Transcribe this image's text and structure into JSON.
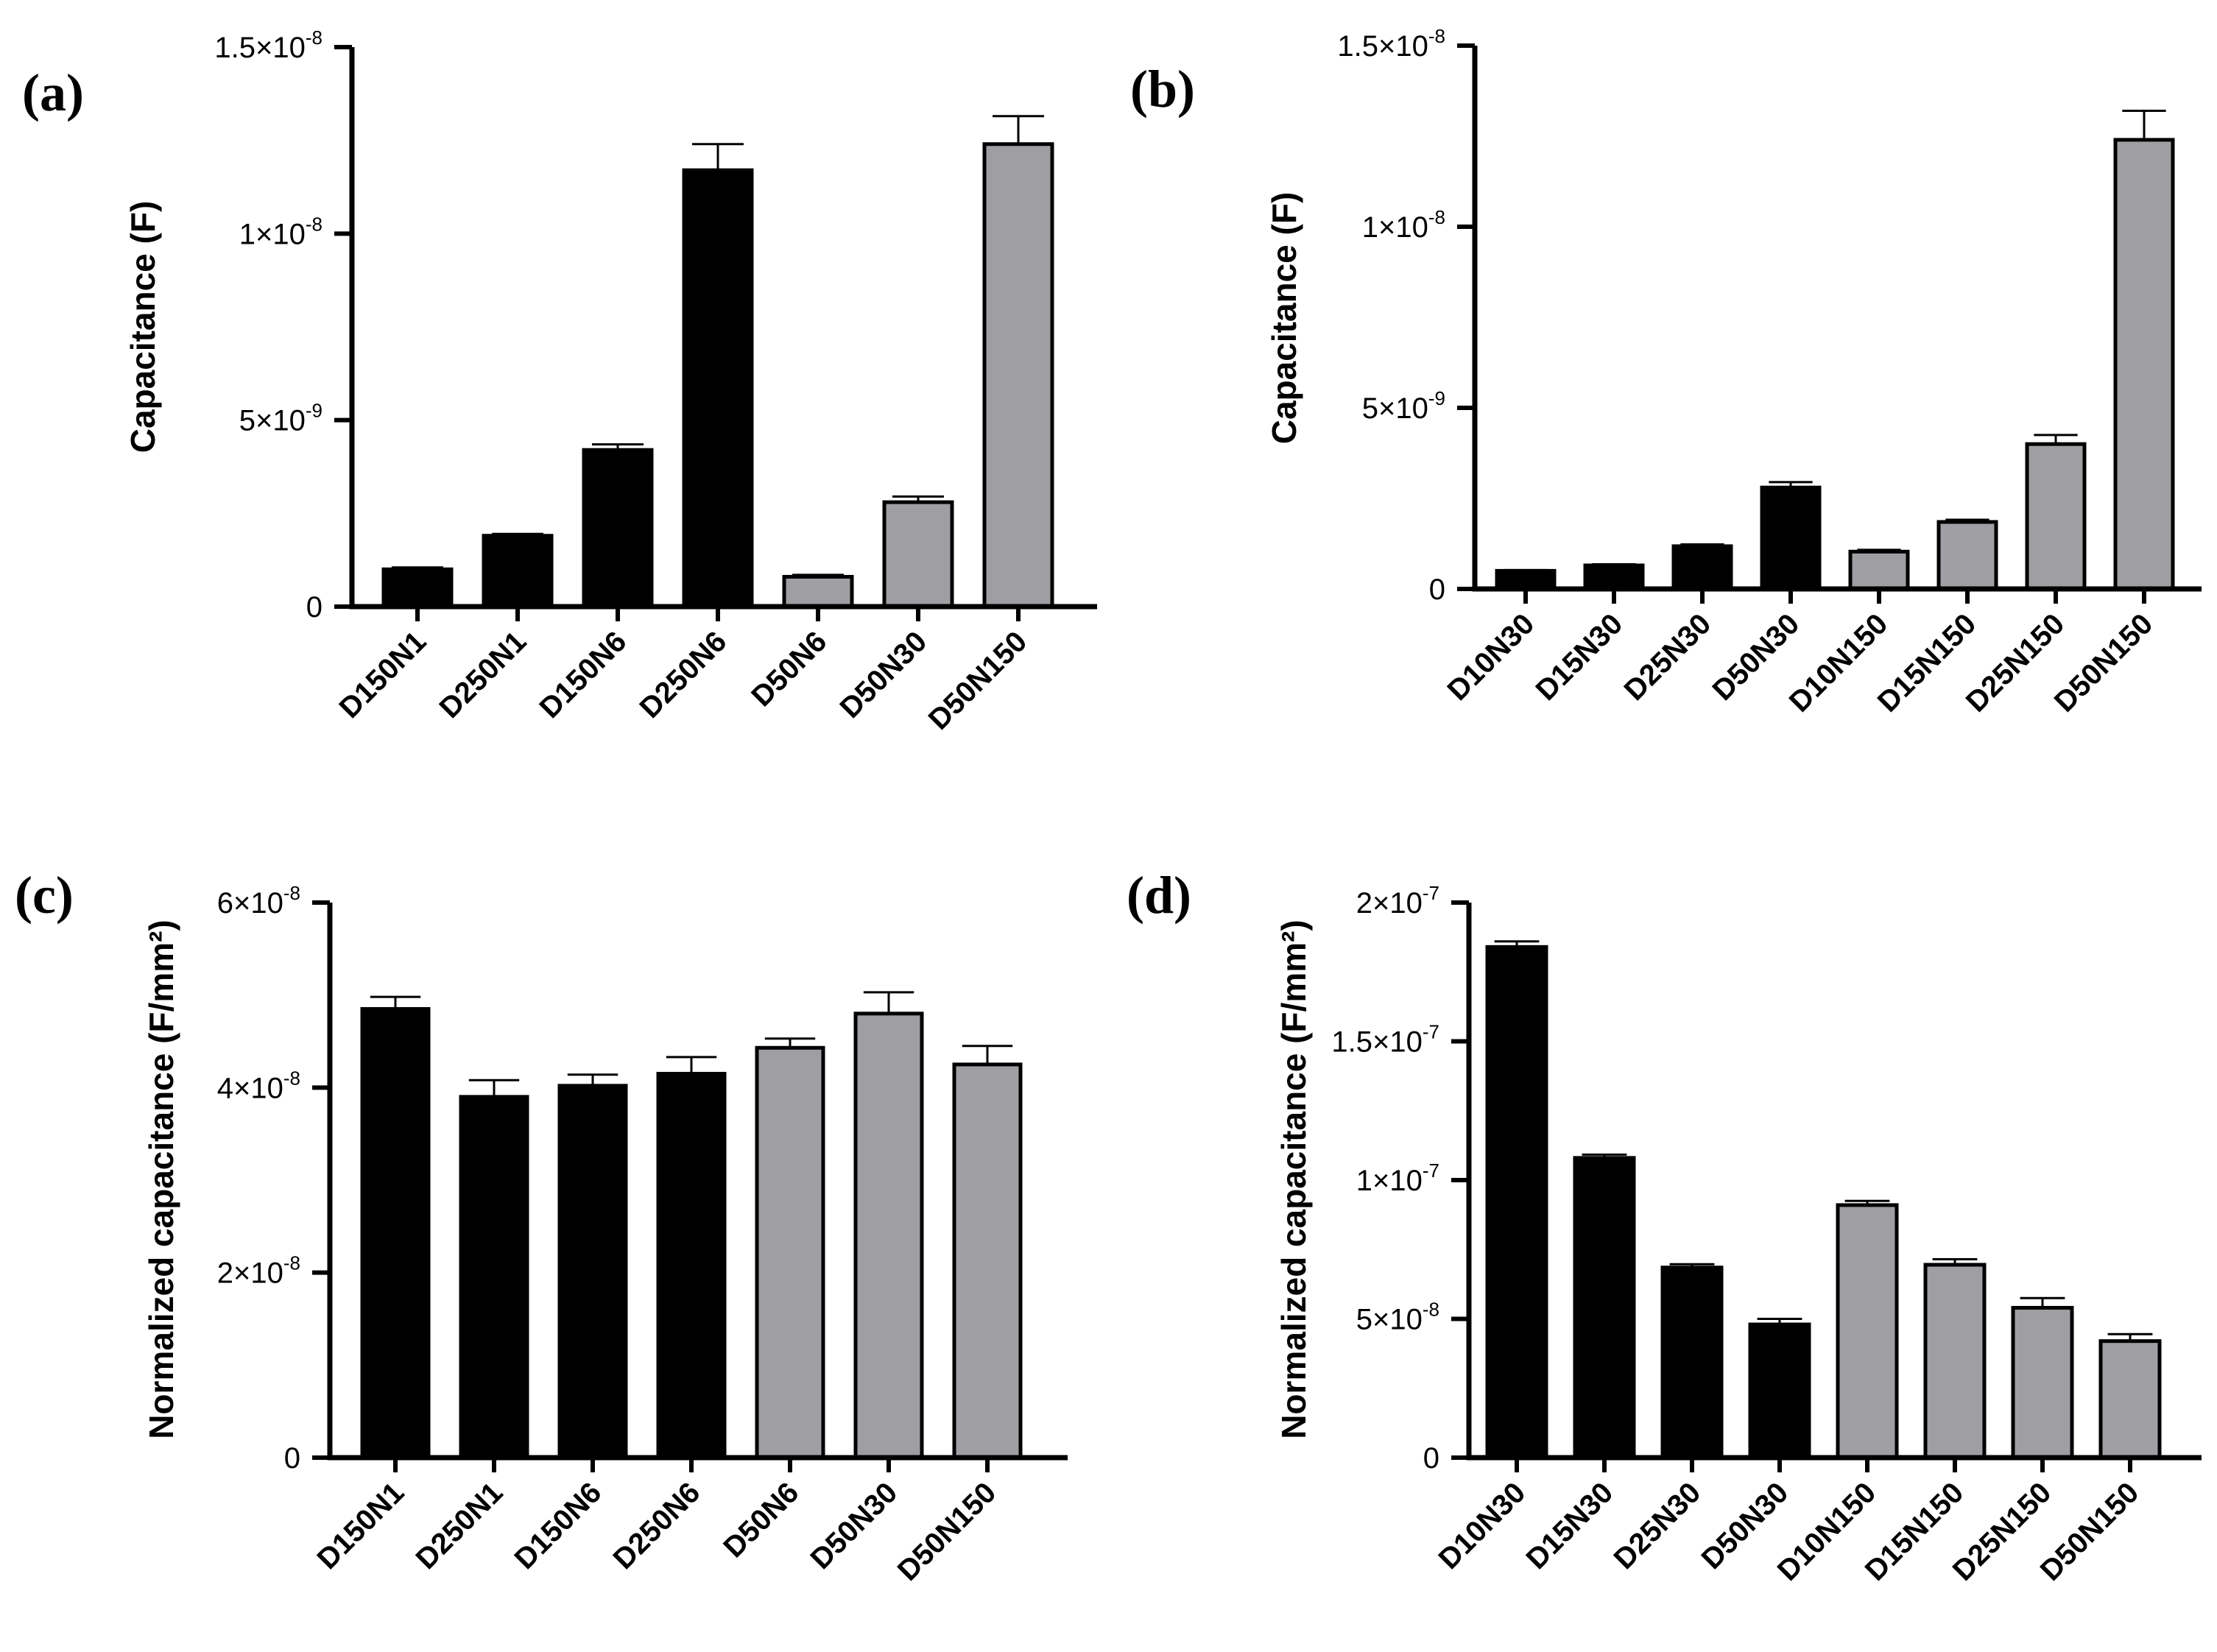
{
  "chart_data": [
    {
      "panel": "(a)",
      "type": "bar",
      "ylabel": "Capacitance (F)",
      "ylim": [
        0,
        1.5e-08
      ],
      "yticks": [
        {
          "mant": "0",
          "exp": ""
        },
        {
          "mant": "5×10",
          "exp": "-9"
        },
        {
          "mant": "1×10",
          "exp": "-8"
        },
        {
          "mant": "1.5×10",
          "exp": "-8"
        }
      ],
      "ytick_values": [
        0,
        5e-09,
        1e-08,
        1.5e-08
      ],
      "categories": [
        "D150N1",
        "D250N1",
        "D150N6",
        "D250N6",
        "D50N6",
        "D50N30",
        "D50N150"
      ],
      "values": [
        1e-09,
        1.9e-09,
        4.2e-09,
        1.17e-08,
        8e-10,
        2.8e-09,
        1.24e-08
      ],
      "errors": [
        5e-11,
        5e-11,
        1.5e-10,
        7e-10,
        5e-11,
        1.5e-10,
        7.5e-10
      ],
      "colors": [
        "#000000",
        "#000000",
        "#000000",
        "#000000",
        "#9e9ea3",
        "#9e9ea3",
        "#9e9ea3"
      ]
    },
    {
      "panel": "(b)",
      "type": "bar",
      "ylabel": "Capacitance (F)",
      "ylim": [
        0,
        1.5e-08
      ],
      "yticks": [
        {
          "mant": "0",
          "exp": ""
        },
        {
          "mant": "5×10",
          "exp": "-9"
        },
        {
          "mant": "1×10",
          "exp": "-8"
        },
        {
          "mant": "1.5×10",
          "exp": "-8"
        }
      ],
      "ytick_values": [
        0,
        5e-09,
        1e-08,
        1.5e-08
      ],
      "categories": [
        "D10N30",
        "D15N30",
        "D25N30",
        "D50N30",
        "D10N150",
        "D15N150",
        "D25N150",
        "D50N150"
      ],
      "values": [
        5e-10,
        6.5e-10,
        1.18e-09,
        2.8e-09,
        1.03e-09,
        1.85e-09,
        4e-09,
        1.24e-08
      ],
      "errors": [
        2e-11,
        3e-11,
        5e-11,
        1.5e-10,
        5e-11,
        6e-11,
        2.5e-10,
        8e-10
      ],
      "colors": [
        "#000000",
        "#000000",
        "#000000",
        "#000000",
        "#9e9ea3",
        "#9e9ea3",
        "#9e9ea3",
        "#9e9ea3"
      ]
    },
    {
      "panel": "(c)",
      "type": "bar",
      "ylabel": "Normalized capacitance (F/mm²)",
      "ylim": [
        0,
        6e-08
      ],
      "yticks": [
        {
          "mant": "0",
          "exp": ""
        },
        {
          "mant": "2×10",
          "exp": "-8"
        },
        {
          "mant": "4×10",
          "exp": "-8"
        },
        {
          "mant": "6×10",
          "exp": "-8"
        }
      ],
      "ytick_values": [
        0,
        2e-08,
        4e-08,
        6e-08
      ],
      "categories": [
        "D150N1",
        "D250N1",
        "D150N6",
        "D250N6",
        "D50N6",
        "D50N30",
        "D50N150"
      ],
      "values": [
        4.85e-08,
        3.9e-08,
        4.02e-08,
        4.15e-08,
        4.43e-08,
        4.8e-08,
        4.25e-08
      ],
      "errors": [
        1.3e-09,
        1.8e-09,
        1.2e-09,
        1.8e-09,
        1e-09,
        2.3e-09,
        2e-09
      ],
      "colors": [
        "#000000",
        "#000000",
        "#000000",
        "#000000",
        "#9e9ea3",
        "#9e9ea3",
        "#9e9ea3"
      ]
    },
    {
      "panel": "(d)",
      "type": "bar",
      "ylabel": "Normalized capacitance (F/mm²)",
      "ylim": [
        0,
        2e-07
      ],
      "yticks": [
        {
          "mant": "0",
          "exp": ""
        },
        {
          "mant": "5×10",
          "exp": "-8"
        },
        {
          "mant": "1×10",
          "exp": "-7"
        },
        {
          "mant": "1.5×10",
          "exp": "-7"
        },
        {
          "mant": "2×10",
          "exp": "-7"
        }
      ],
      "ytick_values": [
        0,
        5e-08,
        1e-07,
        1.5e-07,
        2e-07
      ],
      "categories": [
        "D10N30",
        "D15N30",
        "D25N30",
        "D50N30",
        "D10N150",
        "D15N150",
        "D25N150",
        "D50N150"
      ],
      "values": [
        1.84e-07,
        1.08e-07,
        6.85e-08,
        4.8e-08,
        9.1e-08,
        6.95e-08,
        5.4e-08,
        4.2e-08
      ],
      "errors": [
        2e-09,
        1.2e-09,
        1.2e-09,
        2e-09,
        1.5e-09,
        2e-09,
        3.5e-09,
        2.5e-09
      ],
      "colors": [
        "#000000",
        "#000000",
        "#000000",
        "#000000",
        "#9e9ea3",
        "#9e9ea3",
        "#9e9ea3",
        "#9e9ea3"
      ]
    }
  ]
}
